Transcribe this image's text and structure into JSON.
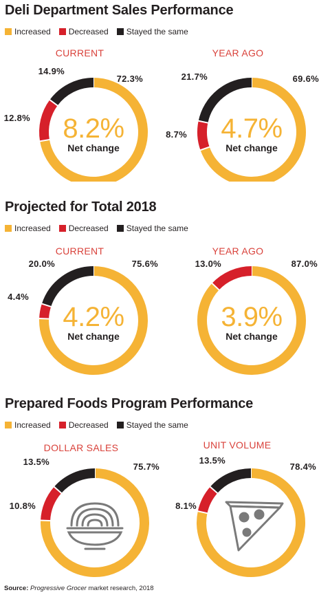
{
  "colors": {
    "increased": "#f5b335",
    "decreased": "#d6202a",
    "same": "#231f20",
    "subtitle": "#d9413a"
  },
  "legend": [
    {
      "label": "Increased",
      "color_key": "increased"
    },
    {
      "label": "Decreased",
      "color_key": "decreased"
    },
    {
      "label": "Stayed the same",
      "color_key": "same"
    }
  ],
  "sections": [
    {
      "title": "Deli Department Sales Performance"
    },
    {
      "title": "Projected for Total 2018"
    },
    {
      "title": "Prepared Foods Program Performance"
    }
  ],
  "chart_data": [
    {
      "type": "pie",
      "section": "Deli Department Sales Performance",
      "title": "CURRENT",
      "categories": [
        "Increased",
        "Decreased",
        "Stayed the same"
      ],
      "values": [
        72.3,
        12.8,
        14.9
      ],
      "labels": [
        "72.3%",
        "12.8%",
        "14.9%"
      ],
      "center_value": "8.2%",
      "center_label": "Net change"
    },
    {
      "type": "pie",
      "section": "Deli Department Sales Performance",
      "title": "YEAR AGO",
      "categories": [
        "Increased",
        "Decreased",
        "Stayed the same"
      ],
      "values": [
        69.6,
        8.7,
        21.7
      ],
      "labels": [
        "69.6%",
        "8.7%",
        "21.7%"
      ],
      "center_value": "4.7%",
      "center_label": "Net change"
    },
    {
      "type": "pie",
      "section": "Projected for Total 2018",
      "title": "CURRENT",
      "categories": [
        "Increased",
        "Decreased",
        "Stayed the same"
      ],
      "values": [
        75.6,
        4.4,
        20.0
      ],
      "labels": [
        "75.6%",
        "4.4%",
        "20.0%"
      ],
      "center_value": "4.2%",
      "center_label": "Net change"
    },
    {
      "type": "pie",
      "section": "Projected for Total 2018",
      "title": "YEAR AGO",
      "categories": [
        "Increased",
        "Decreased",
        "Stayed the same"
      ],
      "values": [
        87.0,
        13.0,
        0
      ],
      "labels": [
        "87.0%",
        "13.0%",
        ""
      ],
      "center_value": "3.9%",
      "center_label": "Net change"
    },
    {
      "type": "pie",
      "section": "Prepared Foods Program Performance",
      "title": "DOLLAR SALES",
      "categories": [
        "Increased",
        "Decreased",
        "Stayed the same"
      ],
      "values": [
        75.7,
        10.8,
        13.5
      ],
      "labels": [
        "75.7%",
        "10.8%",
        "13.5%"
      ],
      "icon": "spaghetti-bowl-icon"
    },
    {
      "type": "pie",
      "section": "Prepared Foods Program Performance",
      "title": "UNIT VOLUME",
      "categories": [
        "Increased",
        "Decreased",
        "Stayed the same"
      ],
      "values": [
        78.4,
        8.1,
        13.5
      ],
      "labels": [
        "78.4%",
        "8.1%",
        "13.5%"
      ],
      "icon": "pizza-slice-icon"
    }
  ],
  "source": {
    "label": "Source:",
    "publication": "Progressive Grocer",
    "rest": " market research, 2018"
  }
}
